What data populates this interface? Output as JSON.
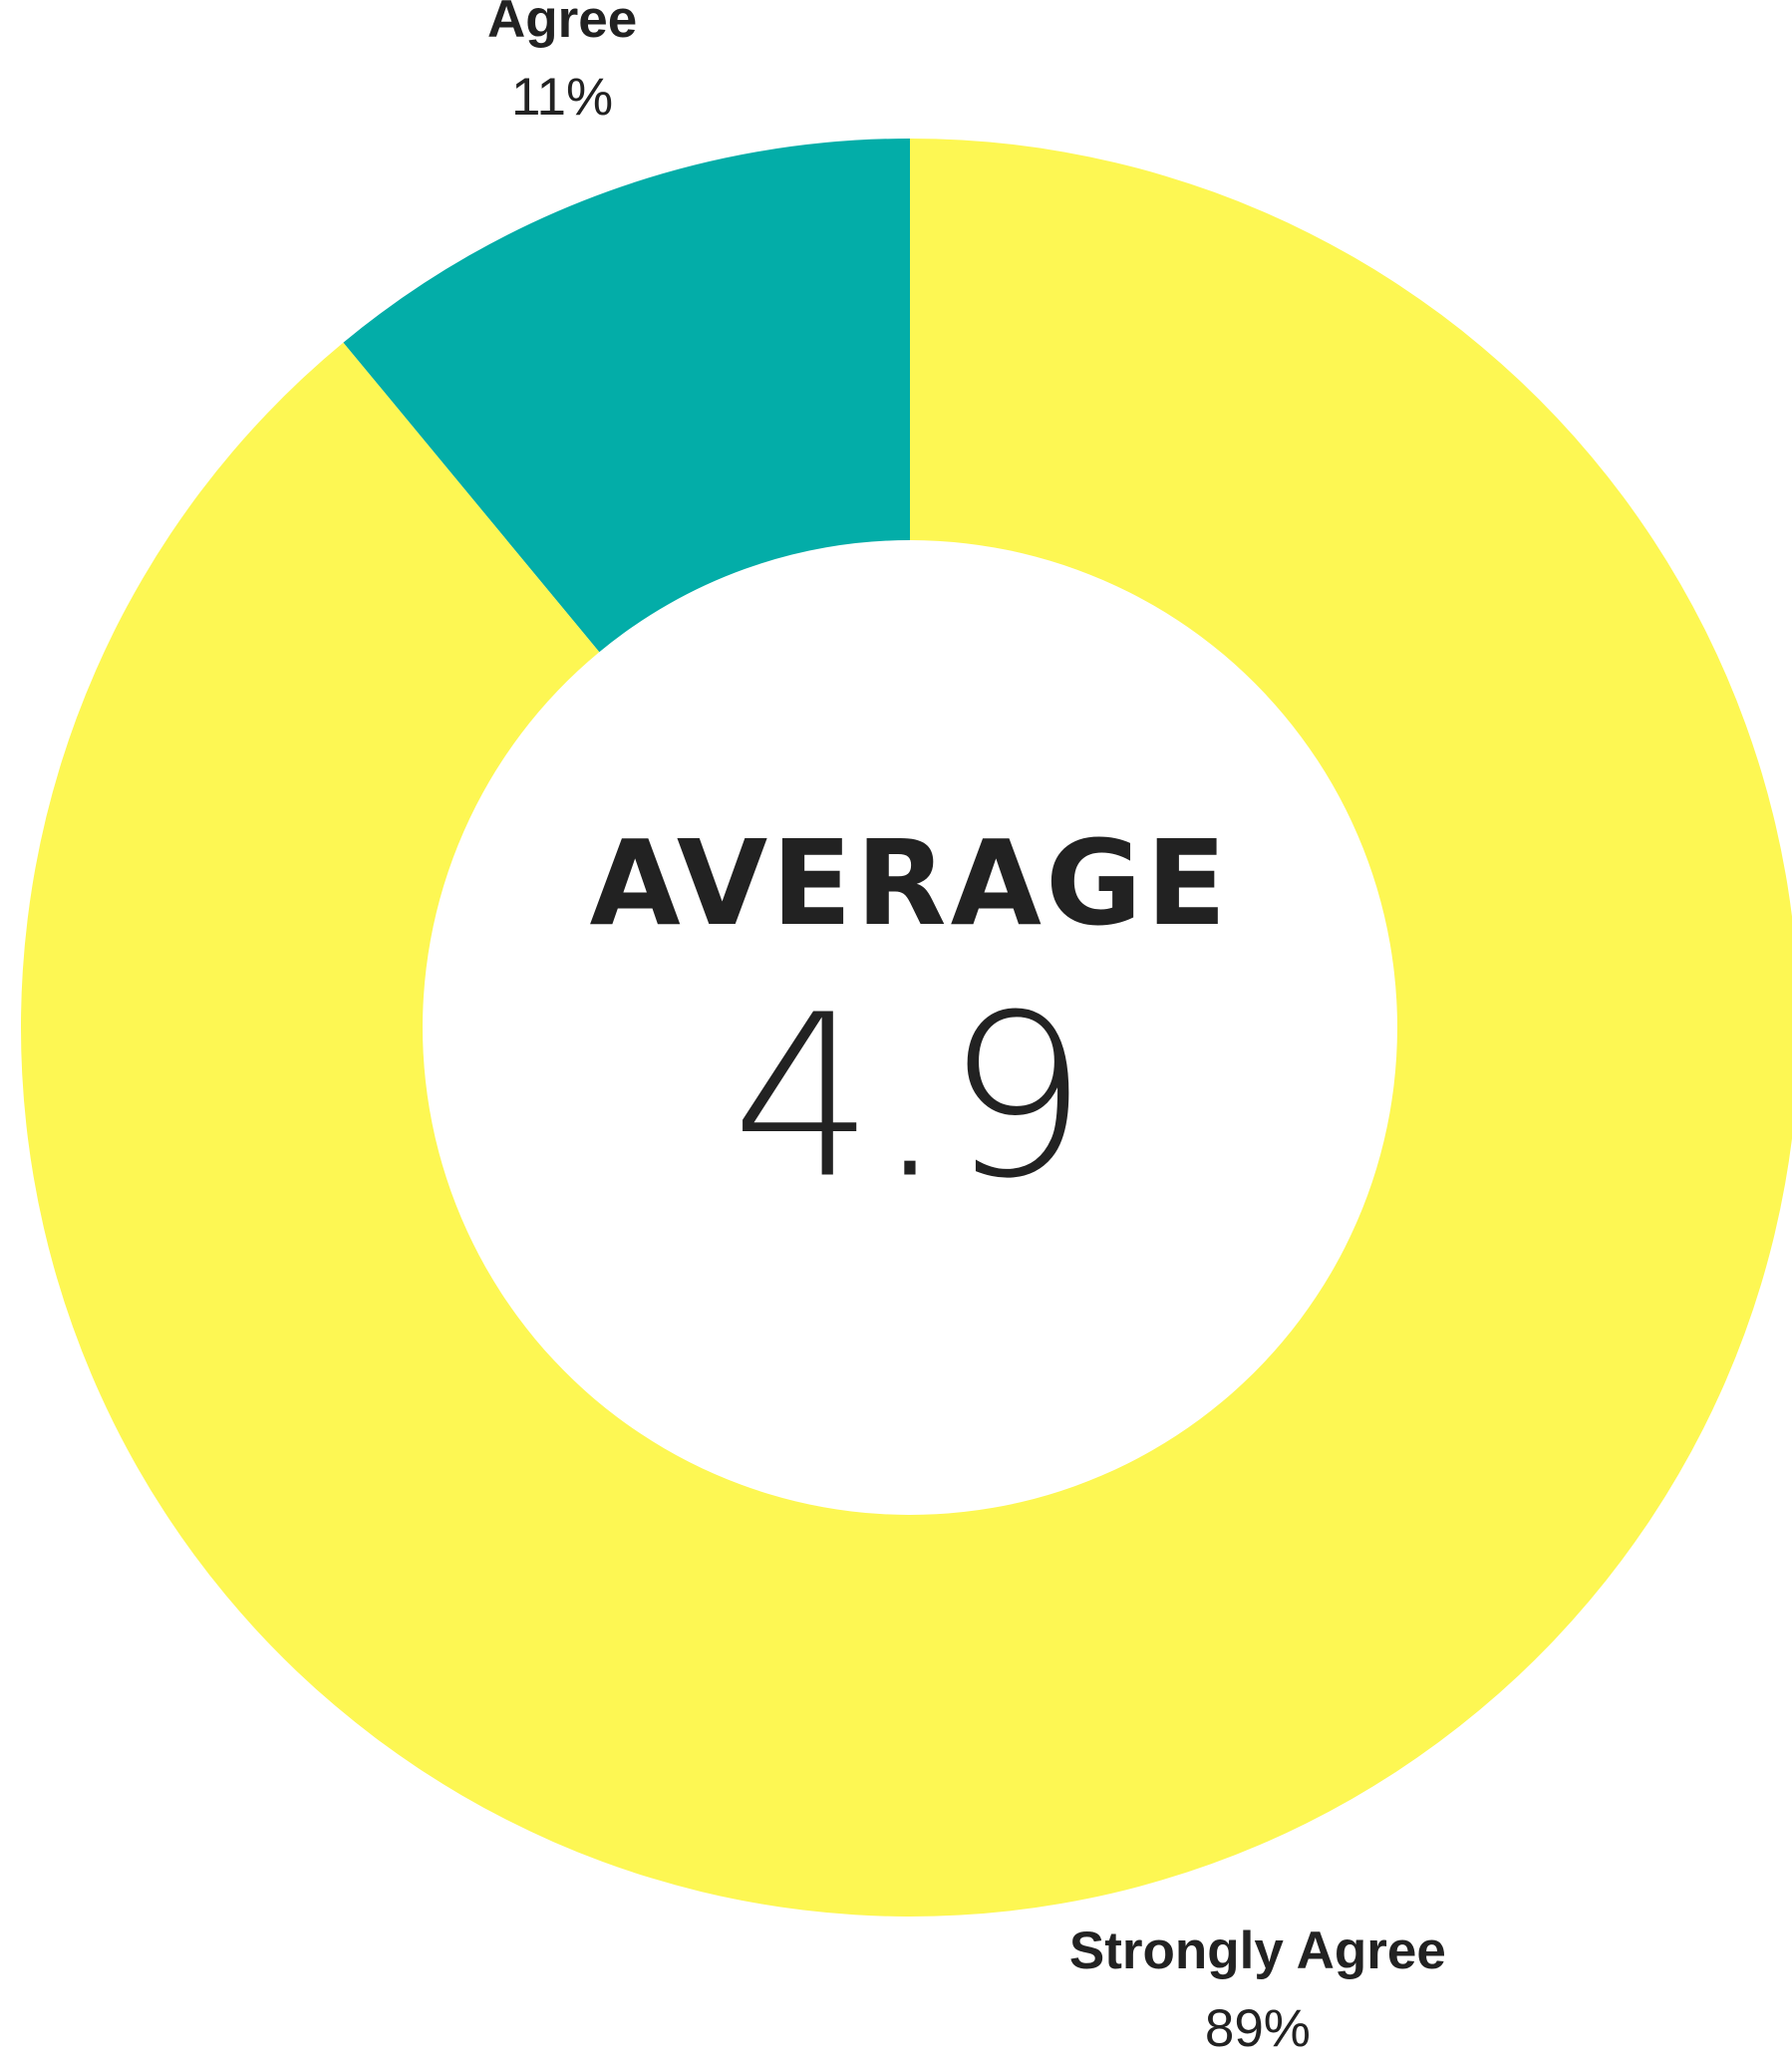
{
  "chart_data": {
    "type": "pie",
    "categories": [
      "Strongly Agree",
      "Agree"
    ],
    "values": [
      89,
      11
    ],
    "value_labels": [
      "89%",
      "11%"
    ],
    "colors": [
      "#fdf753",
      "#03ada8"
    ],
    "center_label": "AVERAGE",
    "center_value": 4.9
  }
}
